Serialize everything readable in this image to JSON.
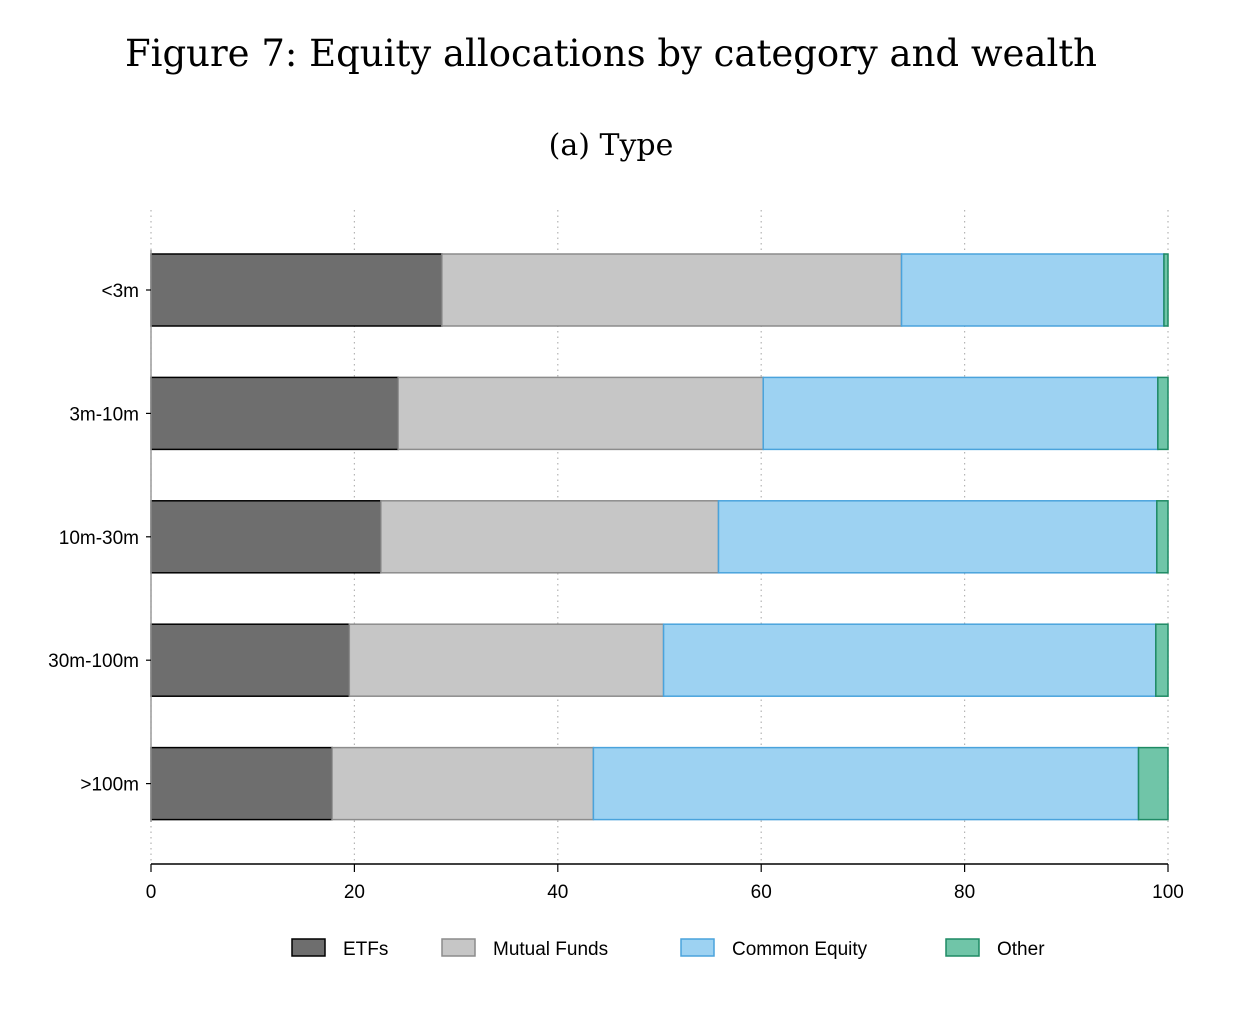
{
  "figure": {
    "title": "Figure 7: Equity allocations by category and wealth",
    "subtitle": "(a) Type"
  },
  "colors": {
    "ETFs": {
      "fill": "#6e6e6e",
      "stroke": "#000000"
    },
    "Mutual Funds": {
      "fill": "#c6c6c6",
      "stroke": "#8c8c8c"
    },
    "Common Equity": {
      "fill": "#9dd2f2",
      "stroke": "#4aa3dc"
    },
    "Other": {
      "fill": "#70c5a8",
      "stroke": "#1e8a64"
    }
  },
  "chart_data": {
    "type": "bar",
    "orientation": "horizontal",
    "stacked": true,
    "title": "Figure 7: Equity allocations by category and wealth",
    "subtitle": "(a) Type",
    "categories": [
      "<3m",
      "3m-10m",
      "10m-30m",
      "30m-100m",
      ">100m"
    ],
    "series": [
      {
        "name": "ETFs",
        "values": [
          28.6,
          24.3,
          22.6,
          19.5,
          17.8
        ]
      },
      {
        "name": "Mutual Funds",
        "values": [
          45.2,
          35.9,
          33.2,
          30.9,
          25.7
        ]
      },
      {
        "name": "Common Equity",
        "values": [
          25.8,
          38.8,
          43.1,
          48.4,
          53.6
        ]
      },
      {
        "name": "Other",
        "values": [
          0.4,
          1.0,
          1.1,
          1.2,
          2.9
        ]
      }
    ],
    "xlim": [
      0,
      100
    ],
    "xticks": [
      0,
      20,
      40,
      60,
      80,
      100
    ],
    "xlabel": "",
    "ylabel": "",
    "grid": "vertical dotted",
    "legend_position": "bottom"
  }
}
